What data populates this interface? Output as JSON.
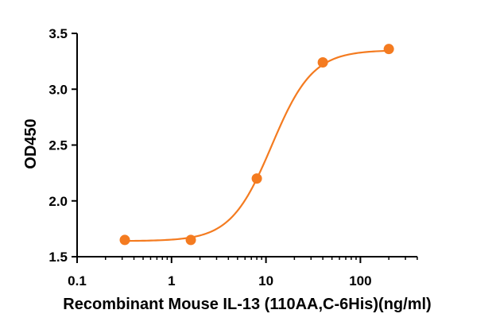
{
  "chart_data": {
    "type": "scatter",
    "xlabel": "Recombinant Mouse IL-13 (110AA,C-6His)(ng/ml)",
    "ylabel": "OD450",
    "x_scale": "log",
    "xlim": [
      0.1,
      500
    ],
    "ylim": [
      1.5,
      3.5
    ],
    "x_ticks": [
      "0.1",
      "1",
      "10",
      "100"
    ],
    "y_ticks": [
      "1.5",
      "2.0",
      "2.5",
      "3.0",
      "3.5"
    ],
    "grid": false,
    "series": [
      {
        "x": [
          0.32,
          1.6,
          8,
          40,
          200
        ],
        "y": [
          1.65,
          1.65,
          2.2,
          3.24,
          3.36
        ],
        "fit": "four-parameter logistic",
        "color": "#f47b20"
      }
    ]
  }
}
